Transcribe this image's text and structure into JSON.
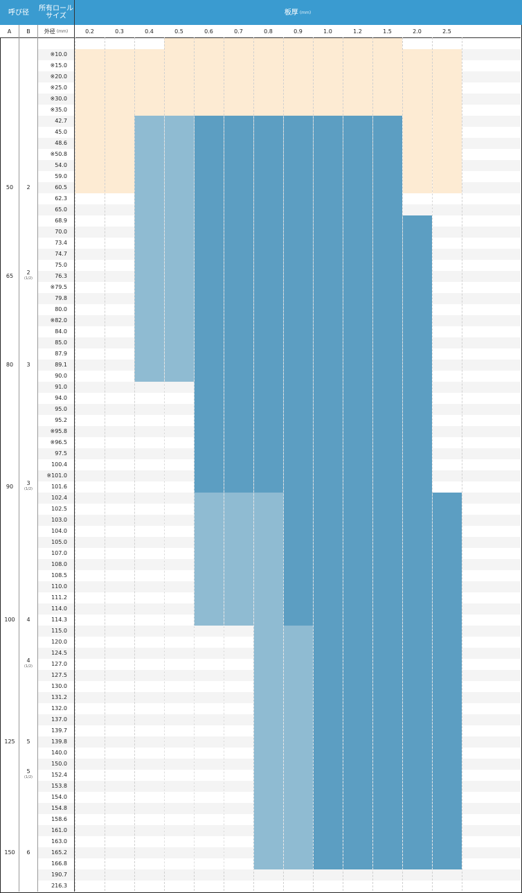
{
  "header": {
    "nominal": "呼び径",
    "roll_size_line1": "所有ロール",
    "roll_size_line2": "サイズ",
    "thickness": "板厚",
    "thickness_unit": "(mm)"
  },
  "subheader": {
    "col_a": "A",
    "col_b": "B",
    "outer_diameter": "外径",
    "od_unit": "(mm)",
    "thicknesses": [
      "0.2",
      "0.3",
      "0.4",
      "0.5",
      "0.6",
      "0.7",
      "0.8",
      "0.9",
      "1.0",
      "1.2",
      "1.5",
      "2.0",
      "2.5"
    ]
  },
  "rows": [
    "",
    "※10.0",
    "※15.0",
    "※20.0",
    "※25.0",
    "※30.0",
    "※35.0",
    "42.7",
    "45.0",
    "48.6",
    "※50.8",
    "54.0",
    "59.0",
    "60.5",
    "62.3",
    "65.0",
    "68.9",
    "70.0",
    "73.4",
    "74.7",
    "75.0",
    "76.3",
    "※79.5",
    "79.8",
    "80.0",
    "※82.0",
    "84.0",
    "85.0",
    "87.9",
    "89.1",
    "90.0",
    "91.0",
    "94.0",
    "95.0",
    "95.2",
    "※95.8",
    "※96.5",
    "97.5",
    "100.4",
    "※101.0",
    "101.6",
    "102.4",
    "102.5",
    "103.0",
    "104.0",
    "105.0",
    "107.0",
    "108.0",
    "108.5",
    "110.0",
    "111.2",
    "114.0",
    "114.3",
    "115.0",
    "120.0",
    "124.5",
    "127.0",
    "127.5",
    "130.0",
    "131.2",
    "132.0",
    "137.0",
    "139.7",
    "139.8",
    "140.0",
    "150.0",
    "152.4",
    "153.8",
    "154.0",
    "154.8",
    "158.6",
    "161.0",
    "163.0",
    "165.2",
    "166.8",
    "190.7",
    "216.3"
  ],
  "nominal_sizes": [
    {
      "a": "50",
      "b": "2",
      "frac": "",
      "row": 13
    },
    {
      "a": "65",
      "b": "2",
      "frac": "(1/2)",
      "row": 21
    },
    {
      "a": "80",
      "b": "3",
      "frac": "",
      "row": 29
    },
    {
      "a": "90",
      "b": "3",
      "frac": "(1/2)",
      "row": 40
    },
    {
      "a": "100",
      "b": "4",
      "frac": "",
      "row": 52
    },
    {
      "a": "",
      "b": "4",
      "frac": "(1/2)",
      "row": 56
    },
    {
      "a": "125",
      "b": "5",
      "frac": "",
      "row": 63
    },
    {
      "a": "",
      "b": "5",
      "frac": "(1/2)",
      "row": 66
    },
    {
      "a": "150",
      "b": "6",
      "frac": "",
      "row": 73
    }
  ],
  "colors": {
    "header_bg": "#3a9bd0",
    "peach": "#fdebd3",
    "light_blue": "#8fbbd2",
    "dark_blue": "#5c9ec2",
    "stripe": "#f4f4f4"
  }
}
